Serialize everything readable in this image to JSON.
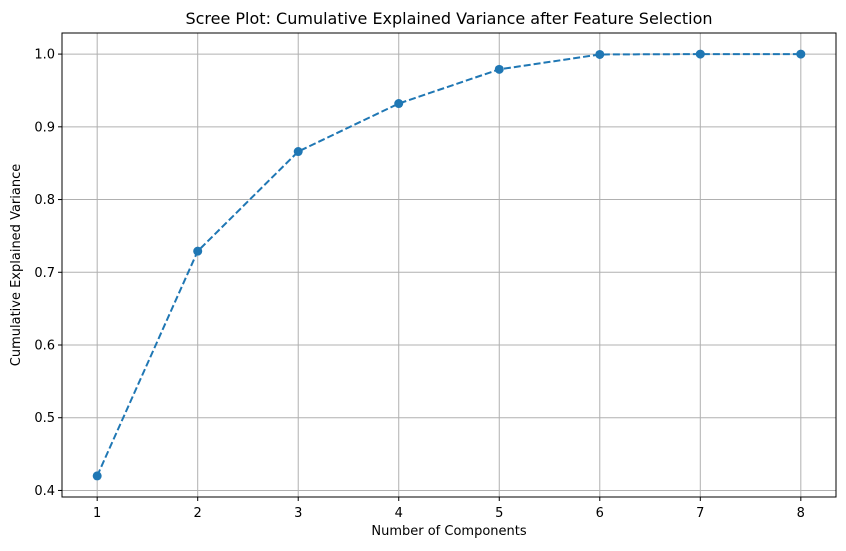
{
  "chart_data": {
    "type": "line",
    "title": "Scree Plot: Cumulative Explained Variance after Feature Selection",
    "xlabel": "Number of Components",
    "ylabel": "Cumulative Explained Variance",
    "x": [
      1,
      2,
      3,
      4,
      5,
      6,
      7,
      8
    ],
    "series": [
      {
        "values": [
          0.42,
          0.729,
          0.866,
          0.932,
          0.979,
          0.9995,
          1.0,
          1.0
        ],
        "color": "#1f77b4",
        "line_style": "dashed",
        "marker": "circle"
      }
    ],
    "xlim": [
      0.65,
      8.35
    ],
    "ylim": [
      0.391,
      1.029
    ],
    "xticks": [
      1,
      2,
      3,
      4,
      5,
      6,
      7,
      8
    ],
    "yticks": [
      0.4,
      0.5,
      0.6,
      0.7,
      0.8,
      0.9,
      1.0
    ],
    "xtick_labels": [
      "1",
      "2",
      "3",
      "4",
      "5",
      "6",
      "7",
      "8"
    ],
    "ytick_labels": [
      "0.4",
      "0.5",
      "0.6",
      "0.7",
      "0.8",
      "0.9",
      "1.0"
    ],
    "grid": true,
    "grid_color": "#b0b0b0",
    "legend": false
  }
}
